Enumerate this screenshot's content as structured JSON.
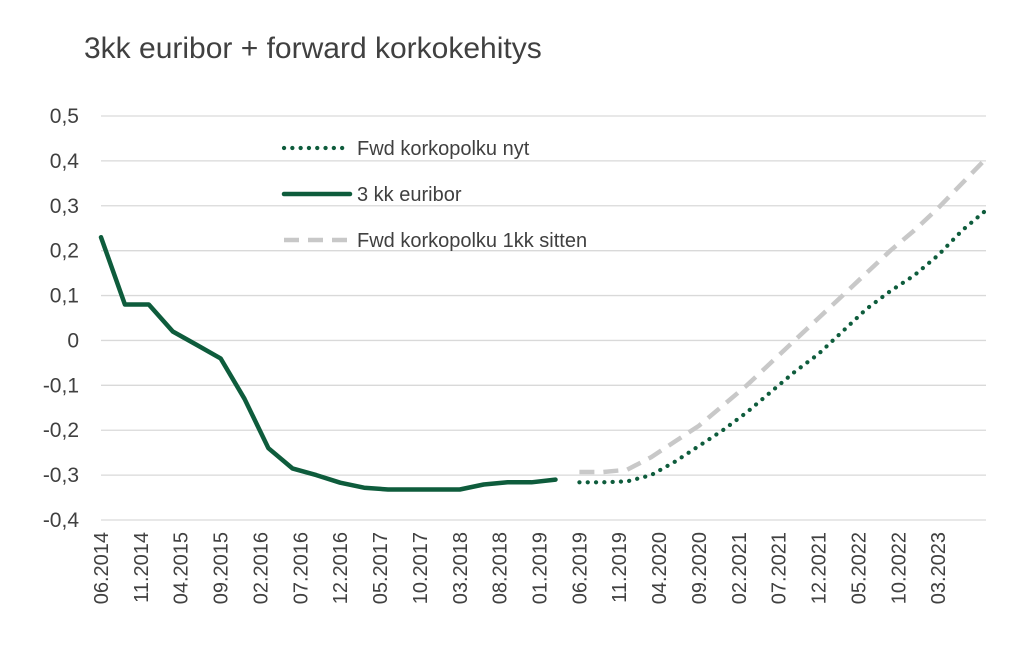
{
  "chart_data": {
    "type": "line",
    "title": "3kk euribor + forward korkokehitys",
    "xlabel": "",
    "ylabel": "",
    "ylim": [
      -0.4,
      0.5
    ],
    "y_ticks": [
      "0,5",
      "0,4",
      "0,3",
      "0,2",
      "0,1",
      "0",
      "-0,1",
      "-0,2",
      "-0,3",
      "-0,4"
    ],
    "x_categories": [
      "06.2014",
      "11.2014",
      "04.2015",
      "09.2015",
      "02.2016",
      "07.2016",
      "12.2016",
      "05.2017",
      "10.2017",
      "03.2018",
      "08.2018",
      "01.2019",
      "06.2019",
      "11.2019",
      "04.2020",
      "09.2020",
      "02.2021",
      "07.2021",
      "12.2021",
      "05.2022",
      "10.2022",
      "03.2023"
    ],
    "x_range": [
      "06.2014",
      "09.2023"
    ],
    "grid": "horizontal",
    "legend_position": "top-left",
    "series": [
      {
        "name": "Fwd korkopolku nyt",
        "style": "dotted",
        "color": "#0e5c3c",
        "points": [
          [
            "2019-06",
            -0.316
          ],
          [
            "2019-09",
            -0.316
          ],
          [
            "2019-12",
            -0.314
          ],
          [
            "2020-03",
            -0.3
          ],
          [
            "2020-06",
            -0.27
          ],
          [
            "2020-09",
            -0.235
          ],
          [
            "2020-12",
            -0.2
          ],
          [
            "2021-03",
            -0.16
          ],
          [
            "2021-06",
            -0.115
          ],
          [
            "2021-09",
            -0.07
          ],
          [
            "2021-12",
            -0.03
          ],
          [
            "2022-03",
            0.02
          ],
          [
            "2022-06",
            0.07
          ],
          [
            "2022-09",
            0.11
          ],
          [
            "2022-12",
            0.145
          ],
          [
            "2023-03",
            0.19
          ],
          [
            "2023-06",
            0.245
          ],
          [
            "2023-09",
            0.29
          ]
        ]
      },
      {
        "name": "3 kk euribor",
        "style": "solid",
        "color": "#0e5c3c",
        "points": [
          [
            "2014-06",
            0.23
          ],
          [
            "2014-09",
            0.08
          ],
          [
            "2014-12",
            0.08
          ],
          [
            "2015-03",
            0.02
          ],
          [
            "2015-06",
            -0.01
          ],
          [
            "2015-09",
            -0.04
          ],
          [
            "2015-12",
            -0.13
          ],
          [
            "2016-03",
            -0.24
          ],
          [
            "2016-06",
            -0.285
          ],
          [
            "2016-09",
            -0.3
          ],
          [
            "2016-12",
            -0.317
          ],
          [
            "2017-03",
            -0.328
          ],
          [
            "2017-06",
            -0.332
          ],
          [
            "2017-09",
            -0.332
          ],
          [
            "2017-12",
            -0.332
          ],
          [
            "2018-03",
            -0.332
          ],
          [
            "2018-06",
            -0.321
          ],
          [
            "2018-09",
            -0.316
          ],
          [
            "2018-12",
            -0.316
          ],
          [
            "2019-03",
            -0.31
          ]
        ]
      },
      {
        "name": "Fwd korkopolku 1kk sitten",
        "style": "dashed",
        "color": "#c8c8c8",
        "points": [
          [
            "2019-06",
            -0.293
          ],
          [
            "2019-09",
            -0.293
          ],
          [
            "2019-12",
            -0.288
          ],
          [
            "2020-03",
            -0.26
          ],
          [
            "2020-06",
            -0.225
          ],
          [
            "2020-09",
            -0.19
          ],
          [
            "2020-12",
            -0.145
          ],
          [
            "2021-03",
            -0.1
          ],
          [
            "2021-06",
            -0.05
          ],
          [
            "2021-09",
            0.0
          ],
          [
            "2021-12",
            0.05
          ],
          [
            "2022-03",
            0.1
          ],
          [
            "2022-06",
            0.15
          ],
          [
            "2022-09",
            0.2
          ],
          [
            "2022-12",
            0.245
          ],
          [
            "2023-03",
            0.295
          ],
          [
            "2023-06",
            0.35
          ],
          [
            "2023-09",
            0.405
          ]
        ]
      }
    ]
  }
}
